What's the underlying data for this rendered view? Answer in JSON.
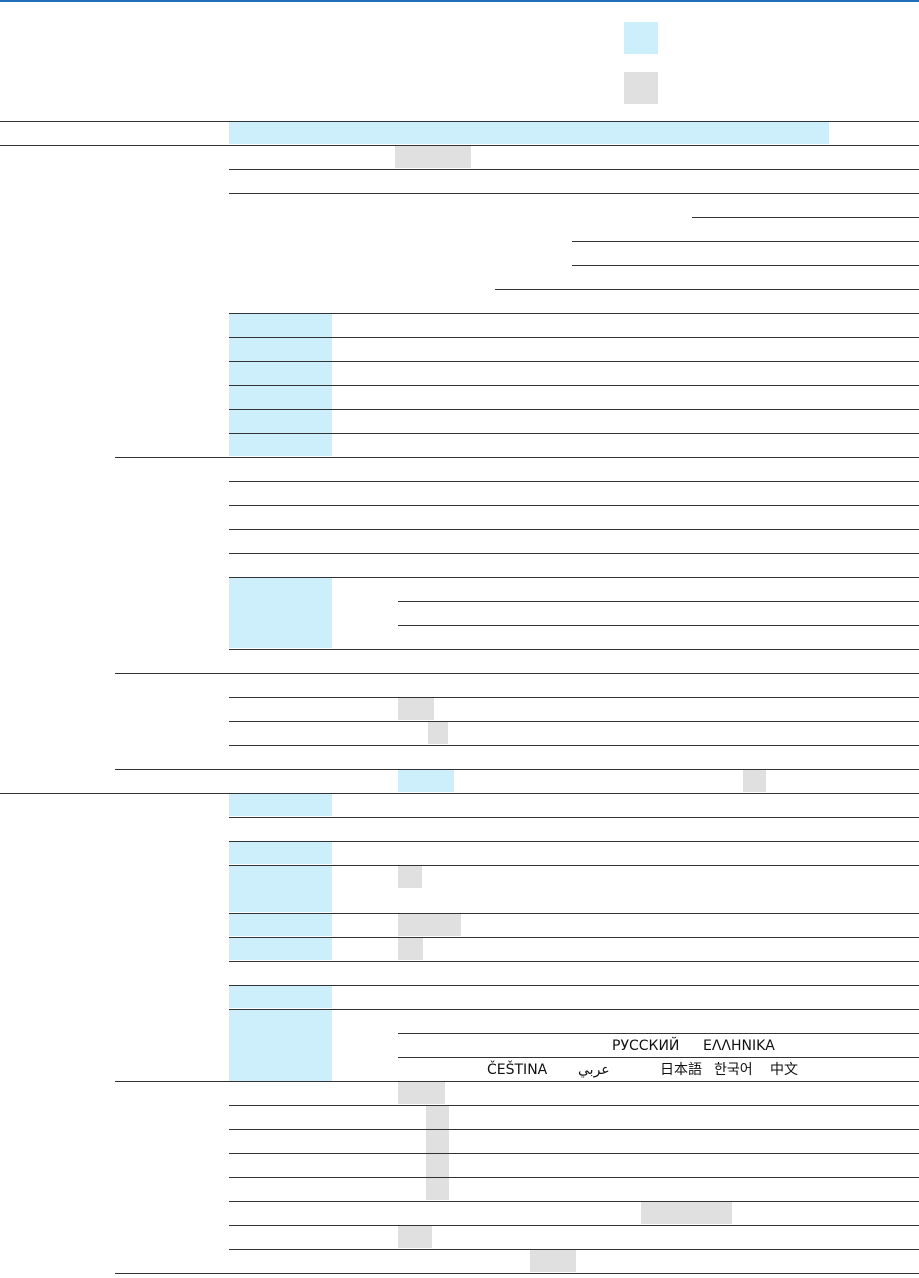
{
  "language_samples": [
    {
      "label": "РУССКИЙ"
    },
    {
      "label": "ΕΛΛΗΝΙΚΑ"
    },
    {
      "label": "ČEŠTINA"
    },
    {
      "label": "عربي"
    },
    {
      "label": "日本語"
    },
    {
      "label": "한국어"
    },
    {
      "label": "中文"
    }
  ]
}
